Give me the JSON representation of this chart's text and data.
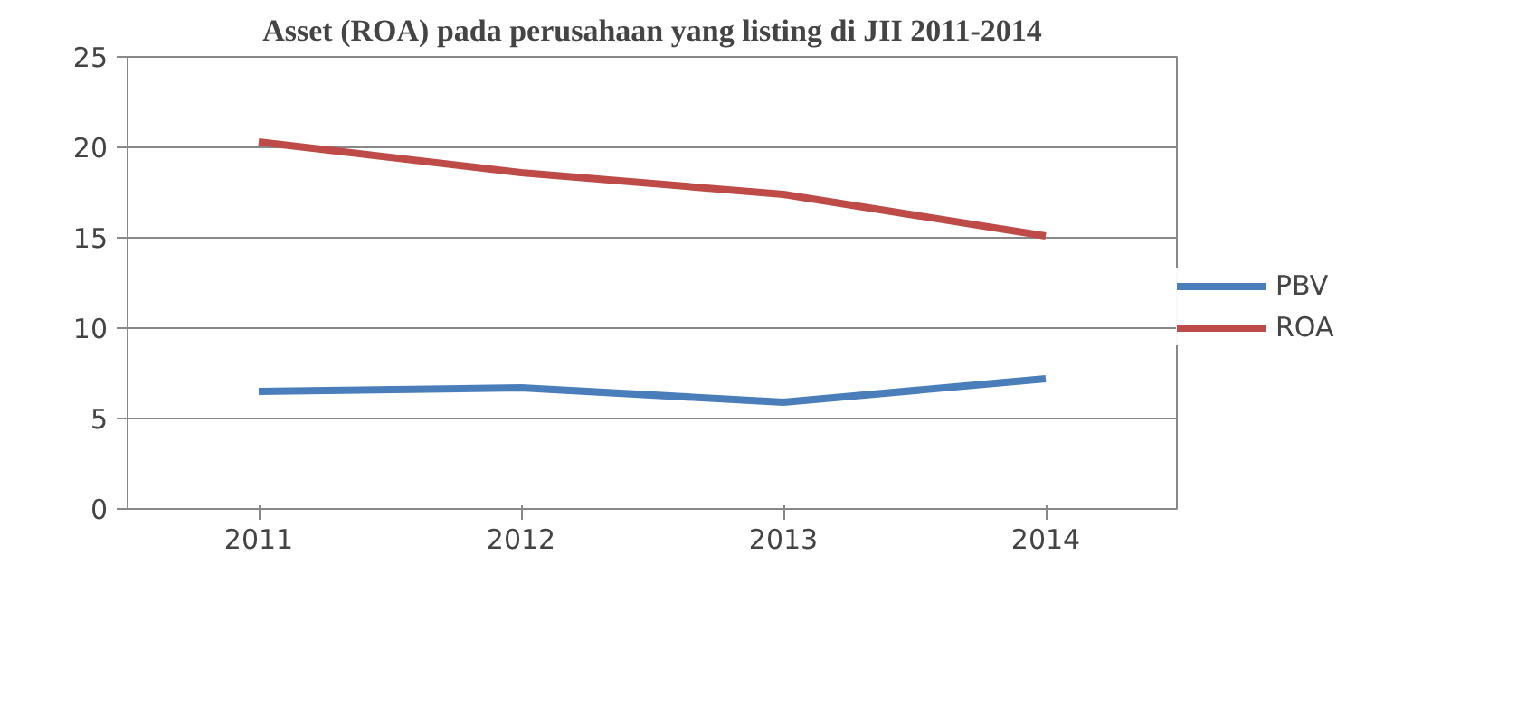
{
  "chart_data": {
    "type": "line",
    "title": "Asset (ROA) pada perusahaan yang listing di JII 2011-2014",
    "categories": [
      "2011",
      "2012",
      "2013",
      "2014"
    ],
    "series": [
      {
        "name": "PBV",
        "color": "#4a7ebb",
        "values": [
          6.5,
          6.7,
          5.9,
          7.2
        ]
      },
      {
        "name": "ROA",
        "color": "#be4b48",
        "values": [
          20.3,
          18.6,
          17.4,
          15.1
        ]
      }
    ],
    "ylim": [
      0,
      25
    ],
    "yticks": [
      0,
      5,
      10,
      15,
      20,
      25
    ],
    "grid": "y",
    "legend": "right",
    "marker": "none",
    "line_style": "solid"
  }
}
